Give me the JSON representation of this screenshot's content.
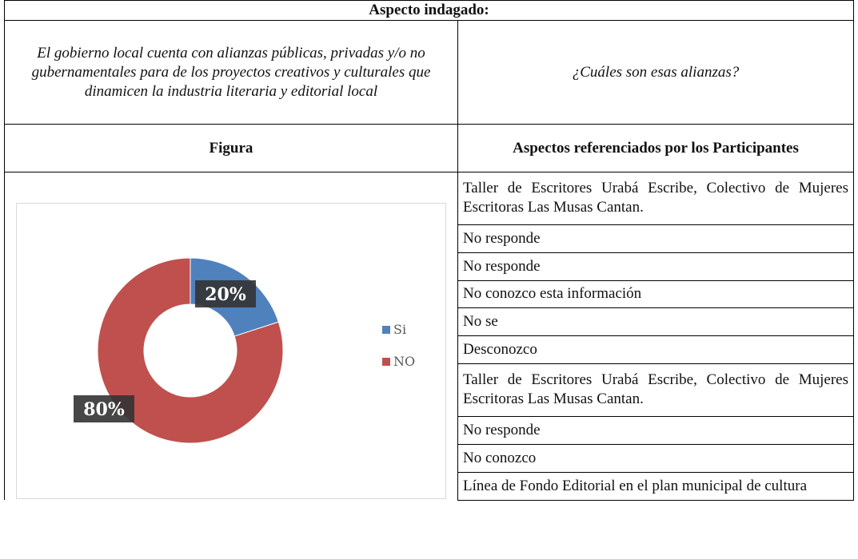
{
  "header": {
    "title": "Aspecto indagado:"
  },
  "question": "El gobierno local cuenta con alianzas públicas, privadas y/o no gubernamentales para de los proyectos creativos y culturales que dinamicen la industria literaria y editorial local",
  "subquestion": "¿Cuáles son esas alianzas?",
  "columns": [
    "Figura",
    "Aspectos referenciados por los Participantes"
  ],
  "chart_data": {
    "type": "pie",
    "donut": true,
    "categories": [
      "Si",
      "NO"
    ],
    "values": [
      20,
      80
    ],
    "value_labels": [
      "20%",
      "80%"
    ],
    "colors": [
      "#4f81bd",
      "#c0504d"
    ],
    "legend": "right"
  },
  "responses": [
    "Taller de Escritores Urabá Escribe, Colectivo de Mujeres Escritoras Las Musas Cantan.",
    "No responde",
    "No responde",
    "No conozco esta información",
    "No se",
    "Desconozco",
    "Taller de Escritores Urabá Escribe, Colectivo de Mujeres Escritoras Las Musas Cantan.",
    "No responde",
    "No conozco",
    "Línea de Fondo Editorial en el plan municipal de cultura"
  ]
}
